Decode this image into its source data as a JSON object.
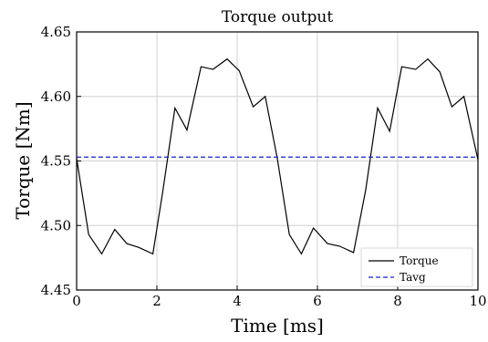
{
  "chart_data": {
    "type": "line",
    "title": "Torque output",
    "xlabel": "Time [ms]",
    "ylabel": "Torque [Nm]",
    "xlim": [
      0,
      10
    ],
    "ylim": [
      4.45,
      4.65
    ],
    "grid": true,
    "legend_position": "bottom-right",
    "xticks": [
      0,
      2,
      4,
      6,
      8,
      10
    ],
    "xtick_labels": [
      "0",
      "2",
      "4",
      "6",
      "8",
      "10"
    ],
    "yticks": [
      4.45,
      4.5,
      4.55,
      4.6,
      4.65
    ],
    "ytick_labels": [
      "4.45",
      "4.50",
      "4.55",
      "4.60",
      "4.65"
    ],
    "series": [
      {
        "name": "Torque",
        "color": "#000000",
        "style": "solid",
        "x": [
          0,
          0.3,
          0.625,
          0.95,
          1.25,
          1.55,
          1.9,
          2.15,
          2.45,
          2.75,
          3.1,
          3.4,
          3.75,
          4.05,
          4.4,
          4.7,
          5.0,
          5.3,
          5.6,
          5.9,
          6.25,
          6.55,
          6.9,
          7.2,
          7.5,
          7.8,
          8.1,
          8.45,
          8.75,
          9.05,
          9.35,
          9.65,
          10.0
        ],
        "y": [
          4.552,
          4.493,
          4.478,
          4.497,
          4.486,
          4.483,
          4.478,
          4.527,
          4.591,
          4.574,
          4.623,
          4.621,
          4.629,
          4.62,
          4.592,
          4.6,
          4.552,
          4.493,
          4.478,
          4.498,
          4.486,
          4.484,
          4.479,
          4.527,
          4.591,
          4.573,
          4.623,
          4.621,
          4.629,
          4.619,
          4.592,
          4.6,
          4.551
        ]
      },
      {
        "name": "Tavg",
        "color": "#1f1fcc",
        "style": "dashed",
        "x": [
          0,
          10
        ],
        "y": [
          4.553,
          4.553
        ]
      }
    ]
  }
}
